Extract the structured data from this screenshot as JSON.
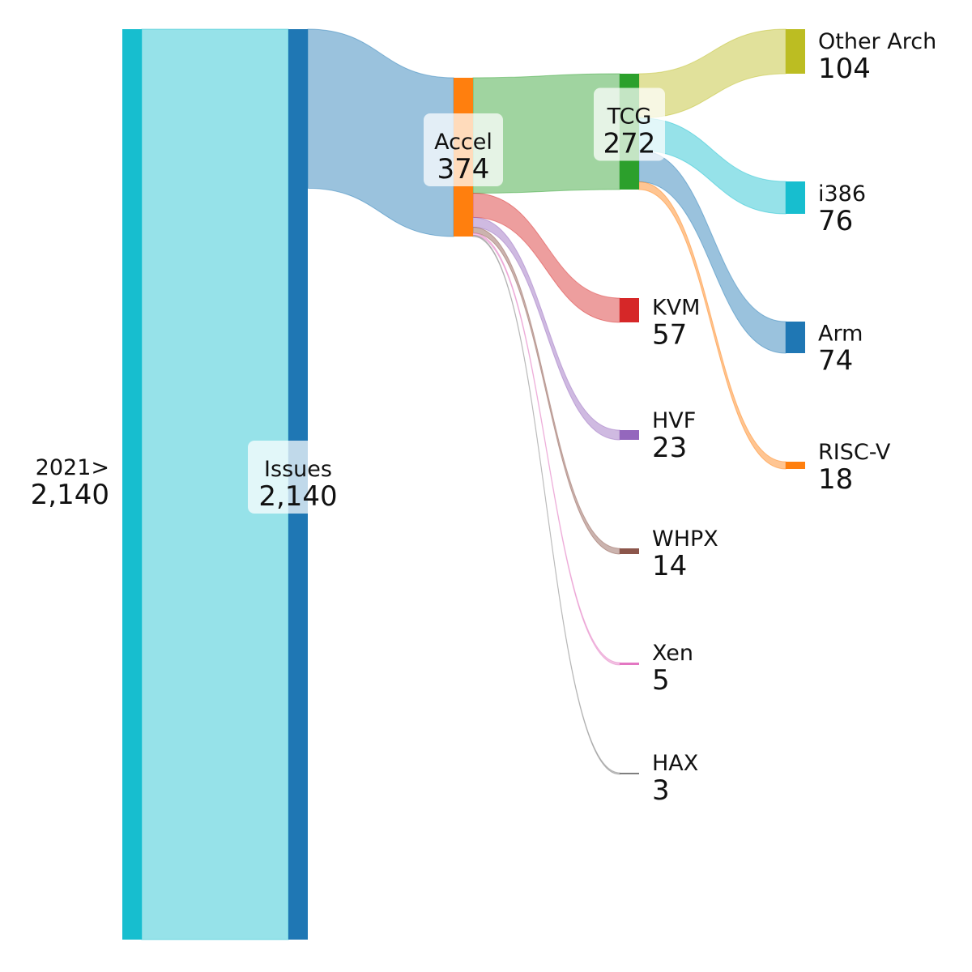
{
  "nodes": [
    {
      "id": "src2021",
      "name": "2021>",
      "value": "2,140",
      "value_num": 2140,
      "color": "#17becf"
    },
    {
      "id": "issues",
      "name": "Issues",
      "value": "2,140",
      "value_num": 2140,
      "color": "#1f77b4"
    },
    {
      "id": "accel",
      "name": "Accel",
      "value": "374",
      "value_num": 374,
      "color": "#ff7f0e"
    },
    {
      "id": "tcg",
      "name": "TCG",
      "value": "272",
      "value_num": 272,
      "color": "#2ca02c"
    },
    {
      "id": "kvm",
      "name": "KVM",
      "value": "57",
      "value_num": 57,
      "color": "#d62728"
    },
    {
      "id": "hvf",
      "name": "HVF",
      "value": "23",
      "value_num": 23,
      "color": "#9467bd"
    },
    {
      "id": "whpx",
      "name": "WHPX",
      "value": "14",
      "value_num": 14,
      "color": "#8c564b"
    },
    {
      "id": "xen",
      "name": "Xen",
      "value": "5",
      "value_num": 5,
      "color": "#e377c2"
    },
    {
      "id": "hax",
      "name": "HAX",
      "value": "3",
      "value_num": 3,
      "color": "#7f7f7f"
    },
    {
      "id": "other_arch",
      "name": "Other Arch",
      "value": "104",
      "value_num": 104,
      "color": "#bcbd22"
    },
    {
      "id": "i386",
      "name": "i386",
      "value": "76",
      "value_num": 76,
      "color": "#17becf"
    },
    {
      "id": "arm",
      "name": "Arm",
      "value": "74",
      "value_num": 74,
      "color": "#1f77b4"
    },
    {
      "id": "riscv",
      "name": "RISC-V",
      "value": "18",
      "value_num": 18,
      "color": "#ff7f0e"
    }
  ],
  "links": [
    {
      "source": "src2021",
      "target": "issues",
      "value": 2140,
      "color": "#17becf"
    },
    {
      "source": "issues",
      "target": "accel",
      "value": 374,
      "color": "#1f77b4"
    },
    {
      "source": "accel",
      "target": "tcg",
      "value": 272,
      "color": "#2ca02c"
    },
    {
      "source": "accel",
      "target": "kvm",
      "value": 57,
      "color": "#d62728"
    },
    {
      "source": "accel",
      "target": "hvf",
      "value": 23,
      "color": "#9467bd"
    },
    {
      "source": "accel",
      "target": "whpx",
      "value": 14,
      "color": "#8c564b"
    },
    {
      "source": "accel",
      "target": "xen",
      "value": 5,
      "color": "#e377c2"
    },
    {
      "source": "accel",
      "target": "hax",
      "value": 3,
      "color": "#7f7f7f"
    },
    {
      "source": "tcg",
      "target": "other_arch",
      "value": 104,
      "color": "#bcbd22"
    },
    {
      "source": "tcg",
      "target": "i386",
      "value": 76,
      "color": "#17becf"
    },
    {
      "source": "tcg",
      "target": "arm",
      "value": 74,
      "color": "#1f77b4"
    },
    {
      "source": "tcg",
      "target": "riscv",
      "value": 18,
      "color": "#ff7f0e"
    }
  ]
}
